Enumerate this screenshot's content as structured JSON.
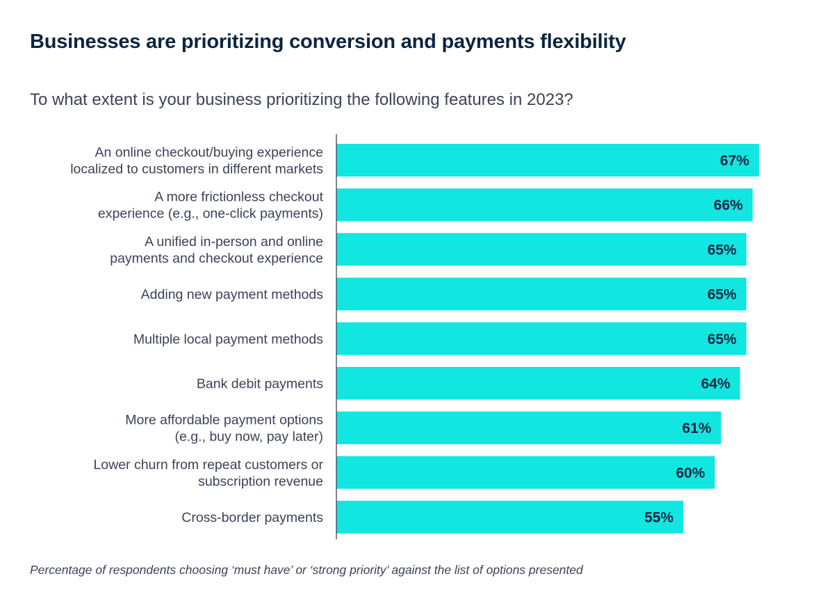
{
  "header": {
    "title": "Businesses are prioritizing conversion and payments flexibility",
    "subtitle": "To what extent is your business prioritizing the following features in 2023?"
  },
  "footnote": "Percentage of respondents choosing ‘must have’ or ‘strong priority’ against the list of options presented",
  "colors": {
    "bar": "#11e6e0",
    "text": "#1a2540"
  },
  "chart_data": {
    "type": "bar",
    "orientation": "horizontal",
    "title": "Businesses are prioritizing conversion and payments flexibility",
    "subtitle": "To what extent is your business prioritizing the following features in 2023?",
    "xlabel": "",
    "ylabel": "",
    "unit": "%",
    "xlim": [
      0,
      67
    ],
    "categories": [
      [
        "An online checkout/buying experience",
        "localized to customers in different markets"
      ],
      [
        "A more frictionless checkout",
        "experience (e.g., one-click payments)"
      ],
      [
        "A unified in-person and online",
        "payments and checkout experience"
      ],
      [
        "Adding new payment methods"
      ],
      [
        "Multiple local payment methods"
      ],
      [
        "Bank debit payments"
      ],
      [
        "More affordable payment options",
        "(e.g., buy now, pay later)"
      ],
      [
        "Lower churn from repeat customers or",
        "subscription revenue"
      ],
      [
        "Cross-border payments"
      ]
    ],
    "values": [
      67,
      66,
      65,
      65,
      65,
      64,
      61,
      60,
      55
    ],
    "value_labels": [
      "67%",
      "66%",
      "65%",
      "65%",
      "65%",
      "64%",
      "61%",
      "60%",
      "55%"
    ]
  }
}
